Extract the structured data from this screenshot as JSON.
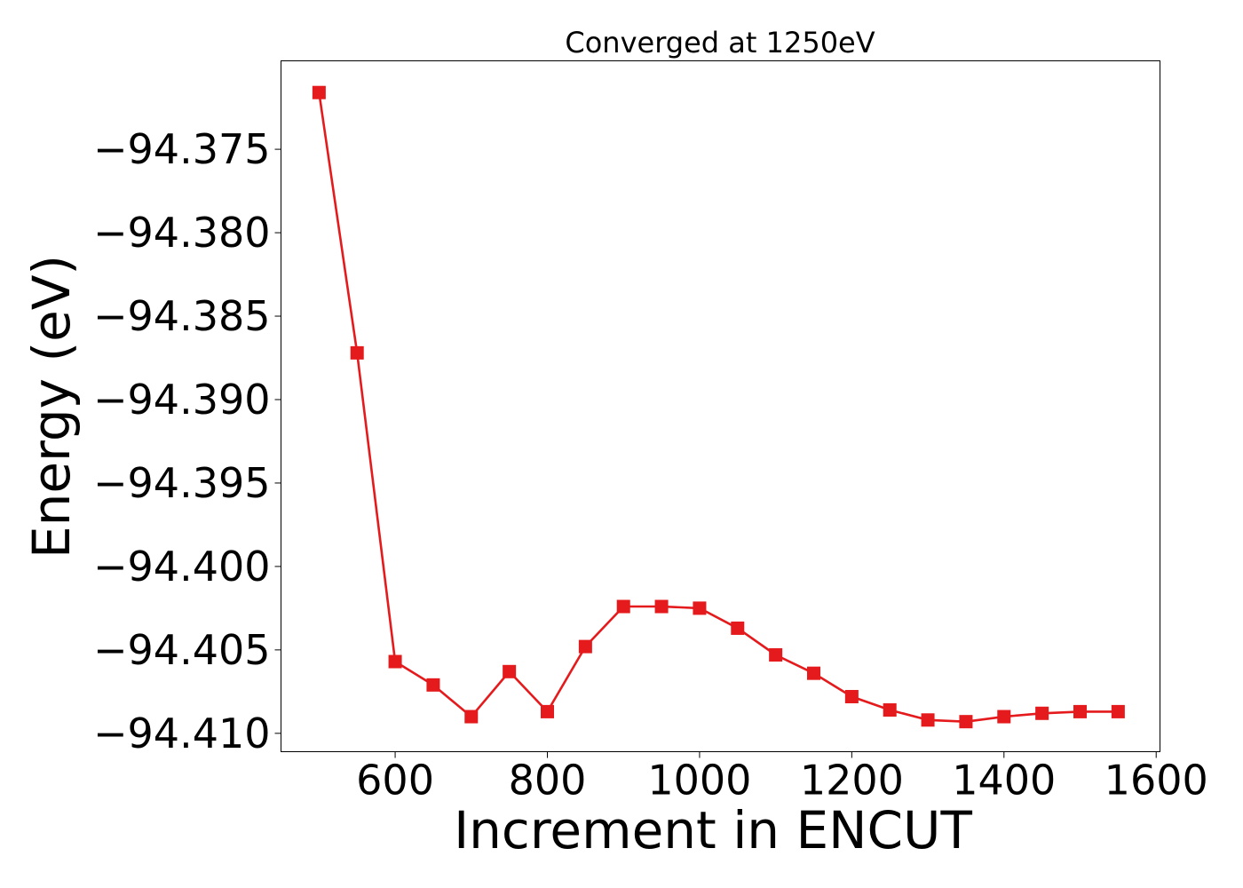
{
  "chart_data": {
    "type": "line",
    "title": "Converged at 1250eV",
    "xlabel": "Increment in ENCUT",
    "ylabel": "Energy (eV)",
    "xlim": [
      450,
      1605
    ],
    "ylim": [
      -94.4111,
      -94.3697
    ],
    "xticks": [
      600,
      800,
      1000,
      1200,
      1400,
      1600
    ],
    "xtick_labels": [
      "600",
      "800",
      "1000",
      "1200",
      "1400",
      "1600"
    ],
    "yticks": [
      -94.375,
      -94.38,
      -94.385,
      -94.39,
      -94.395,
      -94.4,
      -94.405,
      -94.41
    ],
    "ytick_labels": [
      "−94.375",
      "−94.380",
      "−94.385",
      "−94.390",
      "−94.395",
      "−94.400",
      "−94.405",
      "−94.410"
    ],
    "grid": false,
    "series": [
      {
        "color": "#e41a1c",
        "marker": "square",
        "x": [
          500,
          550,
          600,
          650,
          700,
          750,
          800,
          850,
          900,
          950,
          1000,
          1050,
          1100,
          1150,
          1200,
          1250,
          1300,
          1350,
          1400,
          1450,
          1500,
          1550
        ],
        "y": [
          -94.3716,
          -94.3872,
          -94.4057,
          -94.4071,
          -94.409,
          -94.4063,
          -94.4087,
          -94.4048,
          -94.4024,
          -94.4024,
          -94.4025,
          -94.4037,
          -94.4053,
          -94.4064,
          -94.4078,
          -94.4086,
          -94.4092,
          -94.4093,
          -94.409,
          -94.4088,
          -94.4087,
          -94.4087
        ]
      }
    ]
  }
}
